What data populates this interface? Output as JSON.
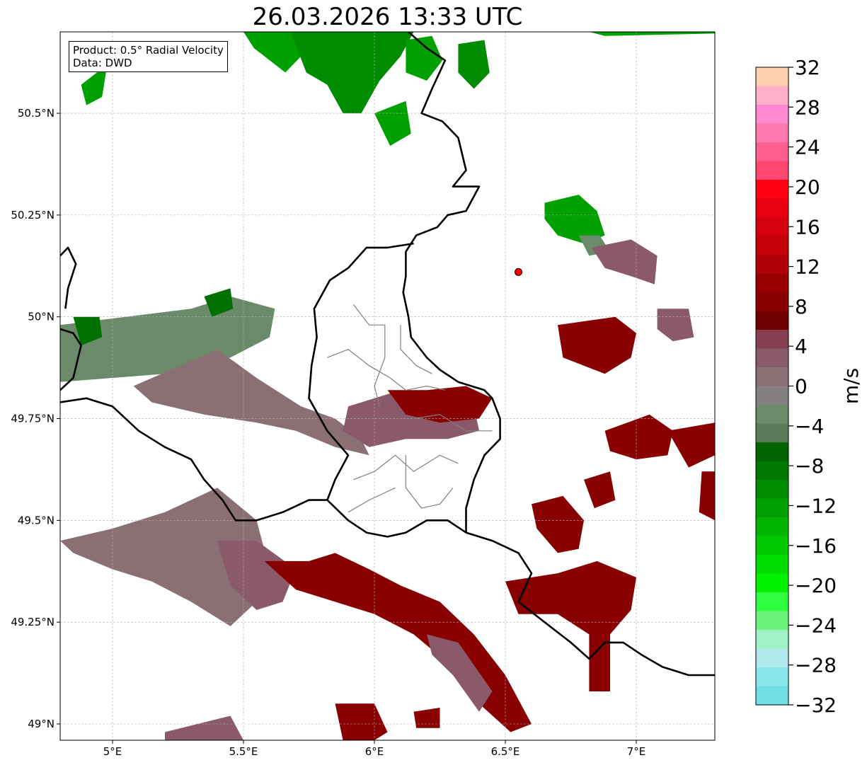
{
  "title": "26.03.2026 13:33 UTC",
  "info": {
    "product": "Product: 0.5° Radial Velocity",
    "data": "Data: DWD"
  },
  "map": {
    "lon_range": [
      4.8,
      7.3
    ],
    "lat_range": [
      48.96,
      50.7
    ],
    "lat_ticks": [
      {
        "value": 50.5,
        "label": "50.5°N"
      },
      {
        "value": 50.25,
        "label": "50.25°N"
      },
      {
        "value": 50.0,
        "label": "50°N"
      },
      {
        "value": 49.75,
        "label": "49.75°N"
      },
      {
        "value": 49.5,
        "label": "49.5°N"
      },
      {
        "value": 49.25,
        "label": "49.25°N"
      },
      {
        "value": 49.0,
        "label": "49°N"
      }
    ],
    "lon_ticks": [
      {
        "value": 5.0,
        "label": "5°E"
      },
      {
        "value": 5.5,
        "label": "5.5°E"
      },
      {
        "value": 6.0,
        "label": "6°E"
      },
      {
        "value": 6.5,
        "label": "6.5°E"
      },
      {
        "value": 7.0,
        "label": "7°E"
      }
    ],
    "radar_site": {
      "lon": 6.55,
      "lat": 50.11,
      "color": "#ff0000"
    },
    "colors": {
      "border": "#000000",
      "region_border": "#808080",
      "grid": "#b0b0b0"
    }
  },
  "colorbar": {
    "unit": "m/s",
    "range": [
      -32,
      32
    ],
    "tick_values": [
      32,
      28,
      24,
      20,
      16,
      12,
      8,
      4,
      0,
      -4,
      -8,
      -12,
      -16,
      -20,
      -24,
      -28,
      -32
    ],
    "tick_labels": [
      "32",
      "28",
      "24",
      "20",
      "16",
      "12",
      "8",
      "4",
      "0",
      "−4",
      "−8",
      "−12",
      "−16",
      "−20",
      "−24",
      "−28",
      "−32"
    ],
    "colors_top_to_bottom": [
      "#ffcfb0",
      "#ffb0c8",
      "#ff88d0",
      "#ff78b0",
      "#ff6090",
      "#ff4870",
      "#ff0010",
      "#e80010",
      "#d40010",
      "#c40008",
      "#b00008",
      "#980000",
      "#880000",
      "#6e0000",
      "#844050",
      "#8a5a6a",
      "#8a7075",
      "#848080",
      "#6a8a6a",
      "#5a7a5a",
      "#006400",
      "#007800",
      "#008c00",
      "#00a000",
      "#00b400",
      "#00c800",
      "#00dc00",
      "#00f000",
      "#30ff40",
      "#6af57a",
      "#a0f0c8",
      "#b0e8ec",
      "#88e8ec",
      "#70e0e6"
    ]
  },
  "echoes": [
    {
      "color": "#00a000",
      "pts": [
        [
          5.5,
          50.7
        ],
        [
          5.75,
          50.7
        ],
        [
          5.72,
          50.64
        ],
        [
          5.66,
          50.6
        ],
        [
          5.6,
          50.63
        ],
        [
          5.54,
          50.66
        ]
      ]
    },
    {
      "color": "#008c00",
      "pts": [
        [
          5.68,
          50.7
        ],
        [
          6.15,
          50.7
        ],
        [
          6.1,
          50.64
        ],
        [
          6.02,
          50.58
        ],
        [
          5.95,
          50.5
        ],
        [
          5.88,
          50.5
        ],
        [
          5.82,
          50.57
        ],
        [
          5.74,
          50.6
        ]
      ]
    },
    {
      "color": "#00a000",
      "pts": [
        [
          6.12,
          50.68
        ],
        [
          6.22,
          50.69
        ],
        [
          6.26,
          50.63
        ],
        [
          6.2,
          50.58
        ],
        [
          6.12,
          50.6
        ]
      ]
    },
    {
      "color": "#008c00",
      "pts": [
        [
          6.32,
          50.67
        ],
        [
          6.42,
          50.68
        ],
        [
          6.44,
          50.6
        ],
        [
          6.38,
          50.56
        ],
        [
          6.32,
          50.6
        ]
      ]
    },
    {
      "color": "#00a000",
      "pts": [
        [
          6.0,
          50.5
        ],
        [
          6.12,
          50.53
        ],
        [
          6.14,
          50.45
        ],
        [
          6.06,
          50.42
        ]
      ]
    },
    {
      "color": "#00a000",
      "pts": [
        [
          4.88,
          50.57
        ],
        [
          4.98,
          50.62
        ],
        [
          4.96,
          50.54
        ],
        [
          4.9,
          50.52
        ]
      ]
    },
    {
      "color": "#00a000",
      "pts": [
        [
          7.6,
          50.7
        ],
        [
          6.88,
          50.69
        ],
        [
          6.82,
          50.7
        ]
      ]
    },
    {
      "color": "#00a000",
      "pts": [
        [
          6.65,
          50.28
        ],
        [
          6.78,
          50.3
        ],
        [
          6.85,
          50.26
        ],
        [
          6.88,
          50.2
        ],
        [
          6.8,
          50.18
        ],
        [
          6.7,
          50.2
        ],
        [
          6.65,
          50.24
        ]
      ]
    },
    {
      "color": "#6a8a6a",
      "pts": [
        [
          6.78,
          50.2
        ],
        [
          6.86,
          50.2
        ],
        [
          6.9,
          50.16
        ],
        [
          6.82,
          50.15
        ]
      ]
    },
    {
      "color": "#8a5a6a",
      "pts": [
        [
          6.83,
          50.17
        ],
        [
          6.98,
          50.19
        ],
        [
          7.08,
          50.15
        ],
        [
          7.07,
          50.08
        ],
        [
          6.98,
          50.1
        ],
        [
          6.88,
          50.12
        ]
      ]
    },
    {
      "color": "#6a8a6a",
      "pts": [
        [
          4.8,
          49.98
        ],
        [
          5.3,
          50.02
        ],
        [
          5.45,
          50.05
        ],
        [
          5.62,
          50.02
        ],
        [
          5.6,
          49.95
        ],
        [
          5.45,
          49.9
        ],
        [
          5.2,
          49.86
        ],
        [
          5.0,
          49.85
        ],
        [
          4.8,
          49.84
        ]
      ]
    },
    {
      "color": "#007000",
      "pts": [
        [
          4.85,
          50.0
        ],
        [
          4.95,
          50.0
        ],
        [
          4.96,
          49.95
        ],
        [
          4.88,
          49.93
        ]
      ]
    },
    {
      "color": "#007000",
      "pts": [
        [
          5.35,
          50.05
        ],
        [
          5.45,
          50.07
        ],
        [
          5.46,
          50.02
        ],
        [
          5.38,
          50.0
        ]
      ]
    },
    {
      "color": "#8a7075",
      "pts": [
        [
          5.08,
          49.83
        ],
        [
          5.4,
          49.92
        ],
        [
          5.55,
          49.85
        ],
        [
          5.72,
          49.78
        ],
        [
          5.85,
          49.75
        ],
        [
          5.95,
          49.7
        ],
        [
          5.98,
          49.66
        ],
        [
          5.85,
          49.68
        ],
        [
          5.7,
          49.72
        ],
        [
          5.55,
          49.74
        ],
        [
          5.35,
          49.76
        ],
        [
          5.15,
          49.79
        ]
      ]
    },
    {
      "color": "#8a5a6a",
      "pts": [
        [
          5.9,
          49.78
        ],
        [
          6.1,
          49.82
        ],
        [
          6.28,
          49.8
        ],
        [
          6.38,
          49.78
        ],
        [
          6.4,
          49.72
        ],
        [
          6.28,
          49.7
        ],
        [
          6.12,
          49.7
        ],
        [
          5.98,
          49.68
        ],
        [
          5.88,
          49.72
        ]
      ]
    },
    {
      "color": "#880000",
      "pts": [
        [
          6.05,
          49.82
        ],
        [
          6.2,
          49.82
        ],
        [
          6.35,
          49.83
        ],
        [
          6.45,
          49.8
        ],
        [
          6.4,
          49.75
        ],
        [
          6.25,
          49.74
        ],
        [
          6.12,
          49.76
        ]
      ]
    },
    {
      "color": "#880000",
      "pts": [
        [
          6.7,
          49.98
        ],
        [
          6.92,
          50.0
        ],
        [
          7.0,
          49.96
        ],
        [
          6.98,
          49.9
        ],
        [
          6.88,
          49.86
        ],
        [
          6.8,
          49.88
        ],
        [
          6.72,
          49.9
        ]
      ]
    },
    {
      "color": "#8a5a6a",
      "pts": [
        [
          7.08,
          50.02
        ],
        [
          7.2,
          50.02
        ],
        [
          7.22,
          49.95
        ],
        [
          7.14,
          49.94
        ],
        [
          7.08,
          49.97
        ]
      ]
    },
    {
      "color": "#880000",
      "pts": [
        [
          6.88,
          49.72
        ],
        [
          7.05,
          49.76
        ],
        [
          7.14,
          49.72
        ],
        [
          7.12,
          49.66
        ],
        [
          7.0,
          49.65
        ],
        [
          6.9,
          49.67
        ]
      ]
    },
    {
      "color": "#880000",
      "pts": [
        [
          7.12,
          49.72
        ],
        [
          7.3,
          49.74
        ],
        [
          7.3,
          49.66
        ],
        [
          7.2,
          49.63
        ]
      ]
    },
    {
      "color": "#880000",
      "pts": [
        [
          7.25,
          49.62
        ],
        [
          7.3,
          49.62
        ],
        [
          7.3,
          49.5
        ],
        [
          7.24,
          49.52
        ]
      ]
    },
    {
      "color": "#880000",
      "pts": [
        [
          6.6,
          49.54
        ],
        [
          6.72,
          49.56
        ],
        [
          6.8,
          49.5
        ],
        [
          6.78,
          49.43
        ],
        [
          6.7,
          49.42
        ],
        [
          6.62,
          49.48
        ]
      ]
    },
    {
      "color": "#880000",
      "pts": [
        [
          6.8,
          49.6
        ],
        [
          6.9,
          49.62
        ],
        [
          6.92,
          49.55
        ],
        [
          6.84,
          49.53
        ]
      ]
    },
    {
      "color": "#8a7075",
      "pts": [
        [
          4.8,
          49.45
        ],
        [
          5.0,
          49.48
        ],
        [
          5.2,
          49.52
        ],
        [
          5.4,
          49.58
        ],
        [
          5.55,
          49.5
        ],
        [
          5.6,
          49.38
        ],
        [
          5.55,
          49.3
        ],
        [
          5.45,
          49.24
        ],
        [
          5.3,
          49.3
        ],
        [
          5.15,
          49.35
        ],
        [
          5.0,
          49.38
        ],
        [
          4.85,
          49.42
        ]
      ]
    },
    {
      "color": "#8a5a6a",
      "pts": [
        [
          5.4,
          49.45
        ],
        [
          5.55,
          49.45
        ],
        [
          5.7,
          49.38
        ],
        [
          5.65,
          49.3
        ],
        [
          5.55,
          49.28
        ],
        [
          5.45,
          49.34
        ]
      ]
    },
    {
      "color": "#880000",
      "pts": [
        [
          5.58,
          49.4
        ],
        [
          5.75,
          49.4
        ],
        [
          5.85,
          49.42
        ],
        [
          5.98,
          49.38
        ],
        [
          6.1,
          49.34
        ],
        [
          6.25,
          49.3
        ],
        [
          6.38,
          49.22
        ],
        [
          6.5,
          49.12
        ],
        [
          6.6,
          49.0
        ],
        [
          6.52,
          48.98
        ],
        [
          6.4,
          49.05
        ],
        [
          6.28,
          49.15
        ],
        [
          6.15,
          49.22
        ],
        [
          6.0,
          49.27
        ],
        [
          5.85,
          49.3
        ],
        [
          5.7,
          49.33
        ]
      ]
    },
    {
      "color": "#8a5a6a",
      "pts": [
        [
          6.2,
          49.22
        ],
        [
          6.32,
          49.2
        ],
        [
          6.45,
          49.08
        ],
        [
          6.4,
          49.03
        ],
        [
          6.3,
          49.12
        ],
        [
          6.22,
          49.17
        ]
      ]
    },
    {
      "color": "#880000",
      "pts": [
        [
          6.5,
          49.35
        ],
        [
          6.7,
          49.37
        ],
        [
          6.85,
          49.4
        ],
        [
          7.0,
          49.36
        ],
        [
          6.98,
          49.28
        ],
        [
          6.9,
          49.22
        ],
        [
          6.9,
          49.08
        ],
        [
          6.82,
          49.08
        ],
        [
          6.82,
          49.22
        ],
        [
          6.7,
          49.27
        ],
        [
          6.55,
          49.27
        ]
      ]
    },
    {
      "color": "#880000",
      "pts": [
        [
          5.85,
          49.05
        ],
        [
          6.0,
          49.05
        ],
        [
          6.05,
          48.98
        ],
        [
          6.0,
          48.96
        ],
        [
          5.88,
          48.96
        ]
      ]
    },
    {
      "color": "#8a5a6a",
      "pts": [
        [
          5.2,
          48.98
        ],
        [
          5.45,
          49.02
        ],
        [
          5.5,
          48.96
        ],
        [
          5.2,
          48.96
        ]
      ]
    },
    {
      "color": "#880000",
      "pts": [
        [
          6.15,
          49.03
        ],
        [
          6.25,
          49.04
        ],
        [
          6.25,
          48.99
        ],
        [
          6.16,
          48.99
        ]
      ]
    }
  ]
}
